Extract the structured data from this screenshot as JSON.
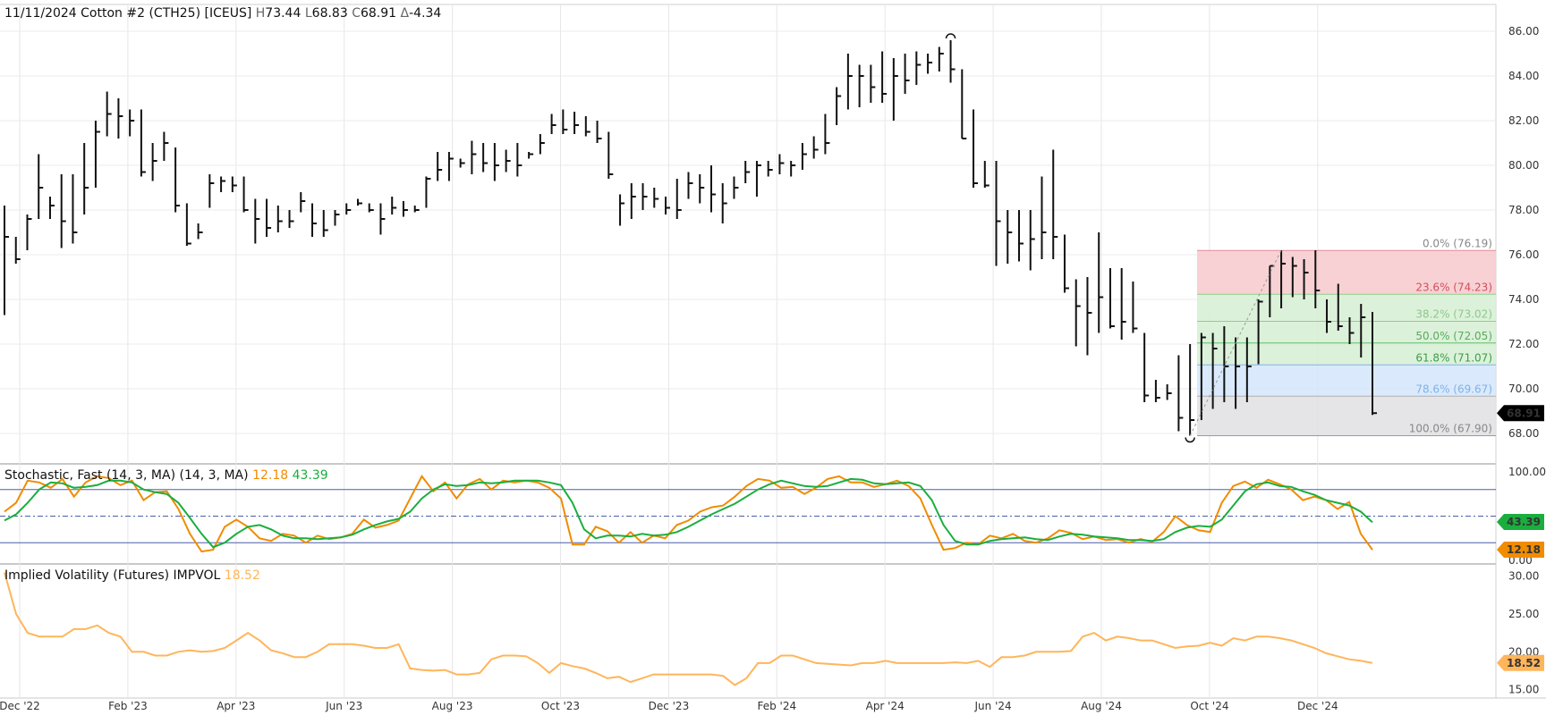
{
  "header": {
    "date": "11/11/2024",
    "symbol": "Cotton #2 (CTH25) [ICEUS]",
    "high_key": "H",
    "high": "73.44",
    "low_key": "L",
    "low": "68.83",
    "close_key": "C",
    "close": "68.91",
    "change_key": "Δ",
    "change": "-4.34"
  },
  "stoch_header": {
    "label": "Stochastic, Fast (14, 3, MA)  (14, 3, MA)",
    "k_value": "12.18",
    "d_value": "43.39"
  },
  "iv_header": {
    "label": "Implied Volatility (Futures)  IMPVOL",
    "value": "18.52"
  },
  "colors": {
    "bars": "#111111",
    "stoch_k": "#f08c00",
    "stoch_d": "#1aae3e",
    "iv": "#ffb55a",
    "fib_red": "#f7c9cc",
    "fib_green": "#d6efd3",
    "fib_blue": "#d3e6fb",
    "fib_gray": "#e1e1e3"
  },
  "chart_data": [
    {
      "type": "ohlc",
      "title": "11/11/2024 Cotton #2 (CTH25) [ICEUS]",
      "ylim": [
        66.8,
        86.6
      ],
      "y_ticks": [
        "86.00",
        "84.00",
        "82.00",
        "80.00",
        "78.00",
        "76.00",
        "74.00",
        "72.00",
        "70.00",
        "68.00"
      ],
      "last_price_label": "68.91",
      "x_ticks": [
        "Dec '22",
        "Feb '23",
        "Apr '23",
        "Jun '23",
        "Aug '23",
        "Oct '23",
        "Dec '23",
        "Feb '24",
        "Apr '24",
        "Jun '24",
        "Aug '24",
        "Oct '24",
        "Dec '24"
      ],
      "fib_levels": [
        {
          "label": "0.0% (76.19)",
          "value": 76.19
        },
        {
          "label": "23.6% (74.23)",
          "value": 74.23
        },
        {
          "label": "38.2% (73.02)",
          "value": 73.02
        },
        {
          "label": "50.0% (72.05)",
          "value": 72.05
        },
        {
          "label": "61.8% (71.07)",
          "value": 71.07
        },
        {
          "label": "78.6% (69.67)",
          "value": 69.67
        },
        {
          "label": "100.0% (67.90)",
          "value": 67.9
        }
      ],
      "bars": [
        [
          78.2,
          73.3,
          76.8
        ],
        [
          76.8,
          75.6,
          75.8
        ],
        [
          77.8,
          76.2,
          77.6
        ],
        [
          80.5,
          77.6,
          79.0
        ],
        [
          78.6,
          77.6,
          78.2
        ],
        [
          79.6,
          76.3,
          77.5
        ],
        [
          79.6,
          76.5,
          77.0
        ],
        [
          81.0,
          77.8,
          79.0
        ],
        [
          82.0,
          79.0,
          81.5
        ],
        [
          83.3,
          81.3,
          82.3
        ],
        [
          83.0,
          81.2,
          82.2
        ],
        [
          82.5,
          81.3,
          82.0
        ],
        [
          82.5,
          79.5,
          79.7
        ],
        [
          81.0,
          79.3,
          80.2
        ],
        [
          81.5,
          80.2,
          81.0
        ],
        [
          80.8,
          77.9,
          78.2
        ],
        [
          78.3,
          76.4,
          76.5
        ],
        [
          77.4,
          76.7,
          77.0
        ],
        [
          79.6,
          78.1,
          79.2
        ],
        [
          79.5,
          78.8,
          79.3
        ],
        [
          79.5,
          78.8,
          79.1
        ],
        [
          79.5,
          77.9,
          78.0
        ],
        [
          78.5,
          76.5,
          77.6
        ],
        [
          78.5,
          76.8,
          77.2
        ],
        [
          78.2,
          77.0,
          77.5
        ],
        [
          78.0,
          77.2,
          77.5
        ],
        [
          78.8,
          77.9,
          78.4
        ],
        [
          78.3,
          76.8,
          77.4
        ],
        [
          78.0,
          76.8,
          77.1
        ],
        [
          78.0,
          77.3,
          77.8
        ],
        [
          78.3,
          77.8,
          78.0
        ],
        [
          78.5,
          78.2,
          78.3
        ],
        [
          78.3,
          77.9,
          78.0
        ],
        [
          78.3,
          76.9,
          77.6
        ],
        [
          78.6,
          77.8,
          78.1
        ],
        [
          78.4,
          77.7,
          78.0
        ],
        [
          78.2,
          77.9,
          78.0
        ],
        [
          79.5,
          78.1,
          79.4
        ],
        [
          80.6,
          79.3,
          79.8
        ],
        [
          80.6,
          79.3,
          80.3
        ],
        [
          80.3,
          79.9,
          80.1
        ],
        [
          81.1,
          79.6,
          80.5
        ],
        [
          81.0,
          79.7,
          80.1
        ],
        [
          81.0,
          79.3,
          80.0
        ],
        [
          80.7,
          79.7,
          80.2
        ],
        [
          81.0,
          79.5,
          80.0
        ],
        [
          80.6,
          80.3,
          80.5
        ],
        [
          81.4,
          80.5,
          81.0
        ],
        [
          82.3,
          81.4,
          81.8
        ],
        [
          82.5,
          81.4,
          81.6
        ],
        [
          82.4,
          81.4,
          81.8
        ],
        [
          82.2,
          81.3,
          81.5
        ],
        [
          82.0,
          81.0,
          81.2
        ],
        [
          81.5,
          79.4,
          79.6
        ],
        [
          78.7,
          77.3,
          78.3
        ],
        [
          79.2,
          77.6,
          78.6
        ],
        [
          79.2,
          78.0,
          78.6
        ],
        [
          79.0,
          78.1,
          78.5
        ],
        [
          78.6,
          77.8,
          78.1
        ],
        [
          79.4,
          77.6,
          78.0
        ],
        [
          79.7,
          78.5,
          79.2
        ],
        [
          79.6,
          78.3,
          79.0
        ],
        [
          80.0,
          77.9,
          78.7
        ],
        [
          79.2,
          77.4,
          78.3
        ],
        [
          79.5,
          78.5,
          79.0
        ],
        [
          80.2,
          79.2,
          79.7
        ],
        [
          80.2,
          78.6,
          80.0
        ],
        [
          80.2,
          79.5,
          79.8
        ],
        [
          80.5,
          79.6,
          80.1
        ],
        [
          80.2,
          79.5,
          80.0
        ],
        [
          81.0,
          79.8,
          80.5
        ],
        [
          81.3,
          80.3,
          80.7
        ],
        [
          82.3,
          80.5,
          81.0
        ],
        [
          83.5,
          81.8,
          83.1
        ],
        [
          85.0,
          82.5,
          84.0
        ],
        [
          84.5,
          82.6,
          84.0
        ],
        [
          84.5,
          82.8,
          83.5
        ],
        [
          85.1,
          82.8,
          83.2
        ],
        [
          84.8,
          82.0,
          84.0
        ],
        [
          85.0,
          83.2,
          83.8
        ],
        [
          85.1,
          83.6,
          84.5
        ],
        [
          85.0,
          84.1,
          84.6
        ],
        [
          85.3,
          84.2,
          85.0
        ],
        [
          85.6,
          83.7,
          84.3
        ],
        [
          84.3,
          81.2,
          81.2
        ],
        [
          82.5,
          79.0,
          79.2
        ],
        [
          80.2,
          79.0,
          79.1
        ],
        [
          80.2,
          75.5,
          77.5
        ],
        [
          78.0,
          75.6,
          77.0
        ],
        [
          78.0,
          75.7,
          76.5
        ],
        [
          78.0,
          75.3,
          76.7
        ],
        [
          79.5,
          75.8,
          77.0
        ],
        [
          80.7,
          75.8,
          76.8
        ],
        [
          76.9,
          74.3,
          74.5
        ],
        [
          74.9,
          71.9,
          73.7
        ],
        [
          75.0,
          71.5,
          73.4
        ],
        [
          77.0,
          72.5,
          74.1
        ],
        [
          75.4,
          72.7,
          72.8
        ],
        [
          75.4,
          72.2,
          73.0
        ],
        [
          74.8,
          72.5,
          72.7
        ],
        [
          72.5,
          69.4,
          69.7
        ],
        [
          70.4,
          69.4,
          69.6
        ],
        [
          70.2,
          69.5,
          69.8
        ],
        [
          71.5,
          68.1,
          68.7
        ],
        [
          72.0,
          67.9,
          68.6
        ],
        [
          72.5,
          68.6,
          72.3
        ],
        [
          72.5,
          69.1,
          71.8
        ],
        [
          72.8,
          69.4,
          71.0
        ],
        [
          72.3,
          69.1,
          71.0
        ],
        [
          72.3,
          69.4,
          71.0
        ],
        [
          74.0,
          71.1,
          73.9
        ],
        [
          75.5,
          73.2,
          75.5
        ],
        [
          76.2,
          73.6,
          75.6
        ],
        [
          75.9,
          74.1,
          75.5
        ],
        [
          75.8,
          74.0,
          75.2
        ],
        [
          76.2,
          73.6,
          74.4
        ],
        [
          74.0,
          72.5,
          73.0
        ],
        [
          74.7,
          72.6,
          72.8
        ],
        [
          73.2,
          72.0,
          72.5
        ],
        [
          73.8,
          71.4,
          73.2
        ],
        [
          73.44,
          68.83,
          68.91
        ]
      ]
    },
    {
      "type": "line",
      "title": "Stochastic, Fast (14, 3, MA)  (14, 3, MA)",
      "ylim": [
        -3,
        108
      ],
      "y_ticks": [
        "100.00",
        "0.00"
      ],
      "reference_lines": [
        80,
        50,
        20
      ],
      "badges": [
        "43.39",
        "12.18"
      ],
      "series": [
        {
          "name": "12.18",
          "color": "#f08c00",
          "values": [
            55,
            65,
            90,
            88,
            82,
            92,
            72,
            88,
            95,
            93,
            85,
            90,
            68,
            77,
            78,
            58,
            30,
            10,
            12,
            38,
            46,
            38,
            25,
            22,
            30,
            28,
            20,
            28,
            24,
            26,
            30,
            46,
            37,
            40,
            45,
            70,
            95,
            78,
            88,
            70,
            86,
            92,
            80,
            90,
            88,
            90,
            88,
            82,
            70,
            18,
            18,
            38,
            33,
            20,
            32,
            20,
            28,
            25,
            40,
            45,
            55,
            60,
            62,
            72,
            84,
            92,
            90,
            82,
            83,
            75,
            82,
            92,
            95,
            88,
            88,
            83,
            86,
            90,
            84,
            70,
            40,
            12,
            14,
            20,
            18,
            28,
            25,
            30,
            22,
            20,
            25,
            34,
            31,
            24,
            27,
            23,
            24,
            20,
            24,
            21,
            32,
            50,
            40,
            34,
            32,
            65,
            84,
            89,
            82,
            91,
            86,
            80,
            68,
            72,
            68,
            58,
            66,
            30,
            12
          ]
        },
        {
          "name": "43.39",
          "color": "#1aae3e",
          "values": [
            45,
            52,
            65,
            80,
            88,
            87,
            82,
            83,
            85,
            90,
            90,
            88,
            80,
            77,
            75,
            65,
            48,
            30,
            15,
            20,
            30,
            38,
            40,
            35,
            28,
            25,
            25,
            24,
            25,
            26,
            29,
            35,
            40,
            44,
            47,
            55,
            70,
            80,
            86,
            84,
            85,
            88,
            87,
            88,
            90,
            90,
            90,
            88,
            85,
            65,
            35,
            25,
            28,
            28,
            27,
            30,
            28,
            29,
            32,
            38,
            45,
            52,
            58,
            64,
            72,
            80,
            86,
            90,
            87,
            84,
            83,
            84,
            88,
            92,
            91,
            87,
            86,
            87,
            88,
            84,
            68,
            40,
            22,
            18,
            18,
            22,
            24,
            25,
            26,
            24,
            23,
            27,
            30,
            29,
            27,
            26,
            25,
            23,
            23,
            22,
            24,
            32,
            37,
            39,
            38,
            46,
            62,
            78,
            86,
            88,
            84,
            83,
            78,
            74,
            68,
            65,
            62,
            55,
            43
          ]
        }
      ]
    },
    {
      "type": "line",
      "title": "Implied Volatility (Futures)  IMPVOL",
      "ylim": [
        14,
        31.5
      ],
      "y_ticks": [
        "30.00",
        "25.00",
        "20.00",
        "15.00"
      ],
      "badges": [
        "18.52"
      ],
      "series": [
        {
          "name": "18.52",
          "color": "#ffb55a",
          "values": [
            30.5,
            25,
            22.5,
            22,
            22,
            22,
            23,
            23,
            23.5,
            22.5,
            22,
            20,
            20,
            19.5,
            19.5,
            20,
            20.2,
            20,
            20.1,
            20.5,
            21.5,
            22.5,
            21.5,
            20.2,
            19.8,
            19.3,
            19.3,
            20,
            21,
            21,
            21,
            20.8,
            20.5,
            20.5,
            21,
            17.8,
            17.6,
            17.5,
            17.6,
            17,
            17,
            17.2,
            19,
            19.5,
            19.5,
            19.4,
            18.5,
            17.2,
            18.5,
            18.1,
            17.8,
            17.2,
            16.5,
            16.7,
            16,
            16.5,
            17,
            17,
            17,
            17,
            17,
            17,
            16.8,
            15.6,
            16.5,
            18.5,
            18.5,
            19.5,
            19.5,
            19,
            18.5,
            18.4,
            18.3,
            18.2,
            18.5,
            18.5,
            18.8,
            18.5,
            18.5,
            18.5,
            18.5,
            18.5,
            18.6,
            18.5,
            18.8,
            18,
            19.3,
            19.3,
            19.5,
            20,
            20,
            20,
            20.1,
            22,
            22.5,
            21.5,
            22,
            21.8,
            21.5,
            21.5,
            21,
            20.5,
            20.7,
            20.8,
            21.2,
            20.8,
            21.8,
            21.5,
            22,
            22,
            21.8,
            21.5,
            21,
            20.5,
            19.8,
            19.4,
            19,
            18.8,
            18.52
          ]
        }
      ]
    }
  ]
}
